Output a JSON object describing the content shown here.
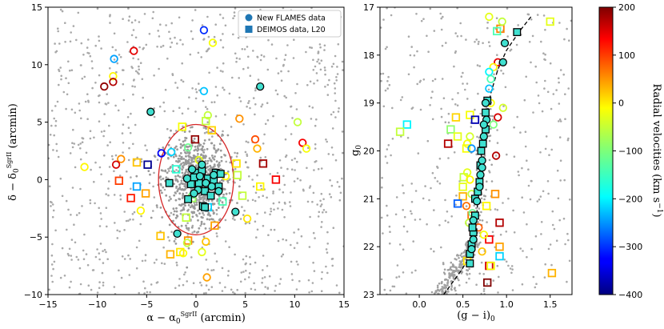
{
  "chart_data": [
    {
      "type": "scatter",
      "panel": "spatial-distribution",
      "xlabel": "α − α₀^SgrII (arcmin)",
      "ylabel": "δ − δ₀^SgrII (arcmin)",
      "xlim": [
        -15,
        15
      ],
      "ylim": [
        -10,
        15
      ],
      "xticks": [
        -15,
        -10,
        -5,
        0,
        5,
        10,
        15
      ],
      "yticks": [
        -10,
        -5,
        0,
        5,
        10,
        15
      ],
      "legend": {
        "placement": "top-right",
        "entries": [
          "New FLAMES data",
          "DEIMOS data, L20"
        ]
      },
      "ellipse": {
        "center": [
          0,
          0
        ],
        "semi_axis_x": 3.8,
        "semi_axis_y": 4.8,
        "color": "#d62728"
      },
      "members_flames": [
        [
          -4.6,
          5.9
        ],
        [
          6.5,
          8.1
        ],
        [
          -0.4,
          0.9
        ],
        [
          0.4,
          0.3
        ],
        [
          1.0,
          -0.3
        ],
        [
          0.2,
          -0.9
        ],
        [
          1.6,
          -0.6
        ],
        [
          2.3,
          -1.0
        ],
        [
          -0.2,
          -1.2
        ],
        [
          1.8,
          0.4
        ],
        [
          4.0,
          -2.8
        ],
        [
          -1.9,
          -4.7
        ],
        [
          0.6,
          1.3
        ],
        [
          -0.9,
          0.1
        ]
      ],
      "members_deimos": [
        [
          0.0,
          0.6
        ],
        [
          0.6,
          0.8
        ],
        [
          1.2,
          0.1
        ],
        [
          1.8,
          -0.1
        ],
        [
          -0.5,
          -0.4
        ],
        [
          0.3,
          -0.3
        ],
        [
          0.9,
          -1.0
        ],
        [
          1.5,
          -1.4
        ],
        [
          2.0,
          0.6
        ],
        [
          -0.8,
          -1.7
        ],
        [
          0.7,
          -2.3
        ],
        [
          -2.7,
          -0.3
        ],
        [
          0.9,
          -2.4
        ],
        [
          2.5,
          0.5
        ],
        [
          2.3,
          -0.6
        ],
        [
          -0.2,
          0.2
        ]
      ],
      "nonmembers_flames": [
        {
          "x": 0.8,
          "y": 13.0,
          "v": -300
        },
        {
          "x": 1.7,
          "y": 11.9,
          "v": -30
        },
        {
          "x": -6.3,
          "y": 11.2,
          "v": 140
        },
        {
          "x": -8.3,
          "y": 10.5,
          "v": -230
        },
        {
          "x": -8.4,
          "y": 9.0,
          "v": -20
        },
        {
          "x": -8.4,
          "y": 8.5,
          "v": 170
        },
        {
          "x": -9.3,
          "y": 8.1,
          "v": 190
        },
        {
          "x": 0.8,
          "y": 7.7,
          "v": -210
        },
        {
          "x": 1.2,
          "y": 5.6,
          "v": -60
        },
        {
          "x": 4.4,
          "y": 5.3,
          "v": 40
        },
        {
          "x": 10.3,
          "y": 5.0,
          "v": -60
        },
        {
          "x": 10.8,
          "y": 3.2,
          "v": 130
        },
        {
          "x": 6.0,
          "y": 3.5,
          "v": 80
        },
        {
          "x": 6.2,
          "y": 2.7,
          "v": 20
        },
        {
          "x": 11.2,
          "y": 2.7,
          "v": -30
        },
        {
          "x": -7.6,
          "y": 1.8,
          "v": 40
        },
        {
          "x": -8.1,
          "y": 1.3,
          "v": 150
        },
        {
          "x": -11.3,
          "y": 1.1,
          "v": -20
        },
        {
          "x": -3.5,
          "y": 2.3,
          "v": -330
        },
        {
          "x": -2.5,
          "y": 2.4,
          "v": -200
        },
        {
          "x": -0.8,
          "y": 2.8,
          "v": -110
        },
        {
          "x": 0.3,
          "y": 1.7,
          "v": -40
        },
        {
          "x": 3.0,
          "y": 0.3,
          "v": -20
        },
        {
          "x": -5.6,
          "y": -2.7,
          "v": -20
        },
        {
          "x": 5.2,
          "y": -3.4,
          "v": -10
        },
        {
          "x": 1.0,
          "y": -5.4,
          "v": 10
        },
        {
          "x": 0.6,
          "y": -6.3,
          "v": -40
        },
        {
          "x": -0.9,
          "y": -5.5,
          "v": -60
        },
        {
          "x": -1.3,
          "y": -6.4,
          "v": -30
        },
        {
          "x": 1.1,
          "y": -8.5,
          "v": 30
        },
        {
          "x": -0.3,
          "y": -1.3,
          "v": -110
        }
      ],
      "nonmembers_deimos": [
        {
          "x": -0.1,
          "y": 3.5,
          "v": 190
        },
        {
          "x": 1.6,
          "y": 4.3,
          "v": 0
        },
        {
          "x": -1.4,
          "y": 4.6,
          "v": -30
        },
        {
          "x": 1.0,
          "y": 5.1,
          "v": -60
        },
        {
          "x": -6.0,
          "y": 1.5,
          "v": 10
        },
        {
          "x": -4.9,
          "y": 1.3,
          "v": -390
        },
        {
          "x": 4.1,
          "y": 1.4,
          "v": -10
        },
        {
          "x": 4.2,
          "y": 0.4,
          "v": -60
        },
        {
          "x": 6.8,
          "y": 1.4,
          "v": 180
        },
        {
          "x": 8.1,
          "y": 0.0,
          "v": 130
        },
        {
          "x": 6.5,
          "y": -0.6,
          "v": -20
        },
        {
          "x": 4.7,
          "y": -1.4,
          "v": -60
        },
        {
          "x": -6.0,
          "y": -0.6,
          "v": -230
        },
        {
          "x": -7.8,
          "y": -0.1,
          "v": 90
        },
        {
          "x": -5.1,
          "y": -1.2,
          "v": 30
        },
        {
          "x": -6.6,
          "y": -1.6,
          "v": 110
        },
        {
          "x": 2.7,
          "y": -1.9,
          "v": -130
        },
        {
          "x": 1.9,
          "y": -4.0,
          "v": 30
        },
        {
          "x": -1.0,
          "y": -3.3,
          "v": -60
        },
        {
          "x": 1.2,
          "y": -2.4,
          "v": -200
        },
        {
          "x": -3.6,
          "y": -4.9,
          "v": 10
        },
        {
          "x": -0.8,
          "y": -5.3,
          "v": 40
        },
        {
          "x": -1.6,
          "y": -6.3,
          "v": -10
        },
        {
          "x": -2.6,
          "y": -6.5,
          "v": 20
        },
        {
          "x": -0.4,
          "y": -1.6,
          "v": -80
        },
        {
          "x": -2.0,
          "y": 0.9,
          "v": -150
        }
      ]
    },
    {
      "type": "scatter",
      "panel": "color-magnitude-diagram",
      "xlabel": "(g − i)₀",
      "ylabel": "g₀",
      "xlim": [
        -0.45,
        1.75
      ],
      "ylim": [
        23,
        17
      ],
      "xticks": [
        0.0,
        0.5,
        1.0,
        1.5
      ],
      "yticks": [
        17,
        18,
        19,
        20,
        21,
        22,
        23
      ],
      "isochrone": [
        [
          1.28,
          17.2
        ],
        [
          1.15,
          17.5
        ],
        [
          1.0,
          17.9
        ],
        [
          0.9,
          18.3
        ],
        [
          0.82,
          18.8
        ],
        [
          0.77,
          19.3
        ],
        [
          0.73,
          19.8
        ],
        [
          0.7,
          20.3
        ],
        [
          0.68,
          20.8
        ],
        [
          0.66,
          21.3
        ],
        [
          0.63,
          21.8
        ],
        [
          0.58,
          22.2
        ],
        [
          0.48,
          22.5
        ],
        [
          0.38,
          22.75
        ],
        [
          0.28,
          23.0
        ]
      ],
      "members_flames": [
        [
          0.98,
          17.75
        ],
        [
          0.96,
          18.15
        ],
        [
          0.76,
          19.0
        ],
        [
          0.77,
          19.35
        ],
        [
          0.74,
          19.7
        ],
        [
          0.72,
          20.2
        ],
        [
          0.7,
          20.5
        ],
        [
          0.69,
          20.75
        ],
        [
          0.66,
          21.05
        ],
        [
          0.62,
          21.45
        ],
        [
          0.62,
          21.85
        ],
        [
          0.6,
          22.05
        ],
        [
          0.74,
          19.45
        ],
        [
          0.72,
          20.35
        ]
      ],
      "members_deimos": [
        [
          1.12,
          17.52
        ],
        [
          0.78,
          18.95
        ],
        [
          0.76,
          19.2
        ],
        [
          0.76,
          19.55
        ],
        [
          0.73,
          19.85
        ],
        [
          0.71,
          20.0
        ],
        [
          0.7,
          20.3
        ],
        [
          0.69,
          20.65
        ],
        [
          0.67,
          20.85
        ],
        [
          0.64,
          21.0
        ],
        [
          0.64,
          21.35
        ],
        [
          0.62,
          21.7
        ],
        [
          0.6,
          21.95
        ],
        [
          0.58,
          22.15
        ],
        [
          0.58,
          22.35
        ],
        [
          0.61,
          21.6
        ]
      ],
      "nonmembers_flames": [
        {
          "x": 0.8,
          "y": 17.2,
          "v": -40
        },
        {
          "x": 0.95,
          "y": 17.3,
          "v": -60
        },
        {
          "x": 0.9,
          "y": 18.15,
          "v": 140
        },
        {
          "x": 0.85,
          "y": 18.25,
          "v": -20
        },
        {
          "x": 0.8,
          "y": 18.35,
          "v": -180
        },
        {
          "x": 0.82,
          "y": 18.5,
          "v": -130
        },
        {
          "x": 0.8,
          "y": 18.7,
          "v": -210
        },
        {
          "x": 0.82,
          "y": 19.0,
          "v": -30
        },
        {
          "x": 0.96,
          "y": 19.1,
          "v": -50
        },
        {
          "x": 0.9,
          "y": 19.3,
          "v": 150
        },
        {
          "x": 0.85,
          "y": 19.45,
          "v": -100
        },
        {
          "x": 0.58,
          "y": 19.7,
          "v": -50
        },
        {
          "x": 0.55,
          "y": 19.85,
          "v": -30
        },
        {
          "x": 0.6,
          "y": 19.95,
          "v": -240
        },
        {
          "x": 0.88,
          "y": 20.1,
          "v": 170
        },
        {
          "x": 0.55,
          "y": 20.45,
          "v": -40
        },
        {
          "x": 0.58,
          "y": 20.6,
          "v": -20
        },
        {
          "x": 0.6,
          "y": 20.9,
          "v": -60
        },
        {
          "x": 0.54,
          "y": 21.15,
          "v": 60
        },
        {
          "x": 0.61,
          "y": 21.3,
          "v": -110
        },
        {
          "x": 0.57,
          "y": 21.5,
          "v": -60
        },
        {
          "x": 0.68,
          "y": 21.6,
          "v": 70
        },
        {
          "x": 0.74,
          "y": 21.75,
          "v": -30
        },
        {
          "x": 0.72,
          "y": 22.1,
          "v": 10
        }
      ],
      "nonmembers_deimos": [
        {
          "x": 0.93,
          "y": 17.45,
          "v": 50
        },
        {
          "x": 0.89,
          "y": 17.5,
          "v": -130
        },
        {
          "x": 1.5,
          "y": 17.3,
          "v": -40
        },
        {
          "x": 0.58,
          "y": 19.25,
          "v": -30
        },
        {
          "x": 0.42,
          "y": 19.3,
          "v": 0
        },
        {
          "x": 0.36,
          "y": 19.55,
          "v": -90
        },
        {
          "x": 0.64,
          "y": 19.35,
          "v": -370
        },
        {
          "x": 0.33,
          "y": 19.85,
          "v": 170
        },
        {
          "x": -0.14,
          "y": 19.45,
          "v": -180
        },
        {
          "x": -0.22,
          "y": 19.6,
          "v": -60
        },
        {
          "x": 0.44,
          "y": 19.7,
          "v": -40
        },
        {
          "x": 0.54,
          "y": 19.95,
          "v": -30
        },
        {
          "x": 0.51,
          "y": 20.55,
          "v": -60
        },
        {
          "x": 0.5,
          "y": 20.75,
          "v": -40
        },
        {
          "x": 0.5,
          "y": 20.95,
          "v": 20
        },
        {
          "x": 0.44,
          "y": 21.1,
          "v": -270
        },
        {
          "x": 0.6,
          "y": 21.35,
          "v": 60
        },
        {
          "x": 0.87,
          "y": 20.9,
          "v": 40
        },
        {
          "x": 0.92,
          "y": 21.5,
          "v": 170
        },
        {
          "x": 0.8,
          "y": 21.85,
          "v": 130
        },
        {
          "x": 0.92,
          "y": 22.0,
          "v": 30
        },
        {
          "x": 0.92,
          "y": 22.2,
          "v": -200
        },
        {
          "x": 0.8,
          "y": 22.4,
          "v": 150
        },
        {
          "x": 0.82,
          "y": 22.4,
          "v": -30
        },
        {
          "x": 1.52,
          "y": 22.55,
          "v": 20
        },
        {
          "x": 0.78,
          "y": 22.75,
          "v": 210
        },
        {
          "x": 0.55,
          "y": 22.3,
          "v": -10
        },
        {
          "x": 0.77,
          "y": 21.15,
          "v": -20
        }
      ]
    }
  ],
  "colorbar": {
    "label": "Radial velocities (km s⁻¹)",
    "min": -400,
    "max": 200,
    "ticks": [
      -400,
      -300,
      -200,
      -100,
      0,
      100,
      200
    ],
    "colormap": "jet"
  },
  "colors": {
    "member_fill": "#40e0d0",
    "background_stars": "#a9a9a9",
    "ellipse": "#d62728",
    "isochrone": "#000000"
  }
}
